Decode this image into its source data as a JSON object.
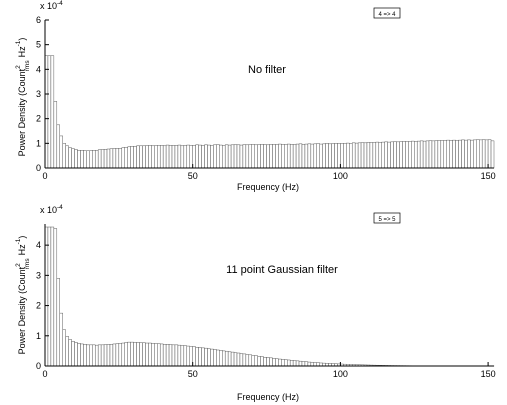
{
  "chart_data": [
    {
      "type": "bar",
      "annotation": "No filter",
      "tag": "4 => 4",
      "xlabel": "Frequency (Hz)",
      "ylabel": "Power Density (Count",
      "ylabel_sup": "2",
      "ylabel_sub": "rms",
      "ylabel_hz": "Hz",
      "ylabel_hz_sup": "-1",
      "ylabel_tail": ")",
      "exponent_base": "x 10",
      "exponent_power": "-4",
      "xlim": [
        0,
        152
      ],
      "ylim": [
        0,
        6
      ],
      "xticks": [
        "0",
        "50",
        "100",
        "150"
      ],
      "yticks": [
        "0",
        "1",
        "2",
        "3",
        "4",
        "5",
        "6"
      ],
      "bin_width": 1,
      "bar_color": "#4d4d4d",
      "values": [
        4.55,
        4.55,
        4.55,
        2.7,
        1.75,
        1.3,
        1.0,
        0.9,
        0.82,
        0.78,
        0.75,
        0.72,
        0.72,
        0.7,
        0.7,
        0.7,
        0.72,
        0.72,
        0.74,
        0.75,
        0.76,
        0.77,
        0.78,
        0.79,
        0.8,
        0.8,
        0.82,
        0.84,
        0.86,
        0.88,
        0.88,
        0.9,
        0.9,
        0.9,
        0.91,
        0.92,
        0.9,
        0.91,
        0.92,
        0.92,
        0.9,
        0.93,
        0.92,
        0.91,
        0.92,
        0.93,
        0.9,
        0.92,
        0.93,
        0.92,
        0.92,
        0.94,
        0.93,
        0.92,
        0.94,
        0.93,
        0.92,
        0.94,
        0.95,
        0.93,
        0.92,
        0.94,
        0.93,
        0.94,
        0.95,
        0.94,
        0.93,
        0.95,
        0.94,
        0.95,
        0.96,
        0.94,
        0.95,
        0.96,
        0.95,
        0.94,
        0.96,
        0.95,
        0.96,
        0.97,
        0.95,
        0.96,
        0.97,
        0.96,
        0.95,
        0.97,
        0.98,
        0.96,
        0.97,
        0.98,
        0.97,
        0.98,
        0.99,
        0.97,
        0.98,
        1.0,
        0.98,
        0.99,
        1.0,
        0.99,
        1.0,
        1.0,
        1.01,
        1.0,
        1.02,
        1.01,
        1.02,
        1.03,
        1.02,
        1.04,
        1.03,
        1.04,
        1.05,
        1.04,
        1.05,
        1.06,
        1.05,
        1.06,
        1.07,
        1.06,
        1.07,
        1.08,
        1.07,
        1.08,
        1.09,
        1.08,
        1.09,
        1.1,
        1.09,
        1.1,
        1.11,
        1.1,
        1.11,
        1.12,
        1.11,
        1.12,
        1.13,
        1.12,
        1.13,
        1.12,
        1.13,
        1.14,
        1.13,
        1.14,
        1.13,
        1.14,
        1.15,
        1.14,
        1.15,
        1.14,
        1.15,
        1.1
      ]
    },
    {
      "type": "bar",
      "annotation": "11 point Gaussian filter",
      "tag": "5 => 5",
      "xlabel": "Frequency (Hz)",
      "ylabel": "Power Density (Count",
      "ylabel_sup": "2",
      "ylabel_sub": "rms",
      "ylabel_hz": "Hz",
      "ylabel_hz_sup": "-1",
      "ylabel_tail": ")",
      "exponent_base": "x 10",
      "exponent_power": "-4",
      "xlim": [
        0,
        152
      ],
      "ylim": [
        0,
        4.7
      ],
      "xticks": [
        "0",
        "50",
        "100",
        "150"
      ],
      "yticks": [
        "0",
        "1",
        "2",
        "3",
        "4"
      ],
      "bin_width": 1,
      "bar_color": "#4d4d4d",
      "values": [
        4.6,
        4.6,
        4.6,
        4.55,
        2.9,
        1.75,
        1.2,
        0.98,
        0.88,
        0.82,
        0.78,
        0.75,
        0.73,
        0.72,
        0.7,
        0.7,
        0.7,
        0.69,
        0.7,
        0.7,
        0.71,
        0.71,
        0.72,
        0.73,
        0.74,
        0.75,
        0.76,
        0.78,
        0.79,
        0.79,
        0.78,
        0.78,
        0.77,
        0.77,
        0.76,
        0.76,
        0.75,
        0.74,
        0.74,
        0.73,
        0.72,
        0.72,
        0.71,
        0.7,
        0.7,
        0.69,
        0.68,
        0.67,
        0.66,
        0.65,
        0.64,
        0.62,
        0.61,
        0.6,
        0.59,
        0.57,
        0.56,
        0.55,
        0.53,
        0.52,
        0.5,
        0.49,
        0.47,
        0.46,
        0.44,
        0.43,
        0.41,
        0.4,
        0.38,
        0.37,
        0.35,
        0.34,
        0.32,
        0.31,
        0.29,
        0.28,
        0.27,
        0.25,
        0.24,
        0.23,
        0.22,
        0.21,
        0.2,
        0.19,
        0.18,
        0.17,
        0.16,
        0.15,
        0.14,
        0.13,
        0.12,
        0.115,
        0.11,
        0.1,
        0.095,
        0.09,
        0.085,
        0.08,
        0.075,
        0.07,
        0.065,
        0.06,
        0.056,
        0.052,
        0.048,
        0.045,
        0.042,
        0.039,
        0.036,
        0.033,
        0.03,
        0.028,
        0.026,
        0.024,
        0.022,
        0.02,
        0.018,
        0.016,
        0.015,
        0.014,
        0.013,
        0.012,
        0.011,
        0.01,
        0.009,
        0.008,
        0.007,
        0.007,
        0.006,
        0.006,
        0.005,
        0.005,
        0.004,
        0.004,
        0.004,
        0.003,
        0.003,
        0.003,
        0.003,
        0.002,
        0.002,
        0.002,
        0.002,
        0.002,
        0.002,
        0.002,
        0.002,
        0.002,
        0.002,
        0.002,
        0.002,
        0.002
      ]
    }
  ]
}
